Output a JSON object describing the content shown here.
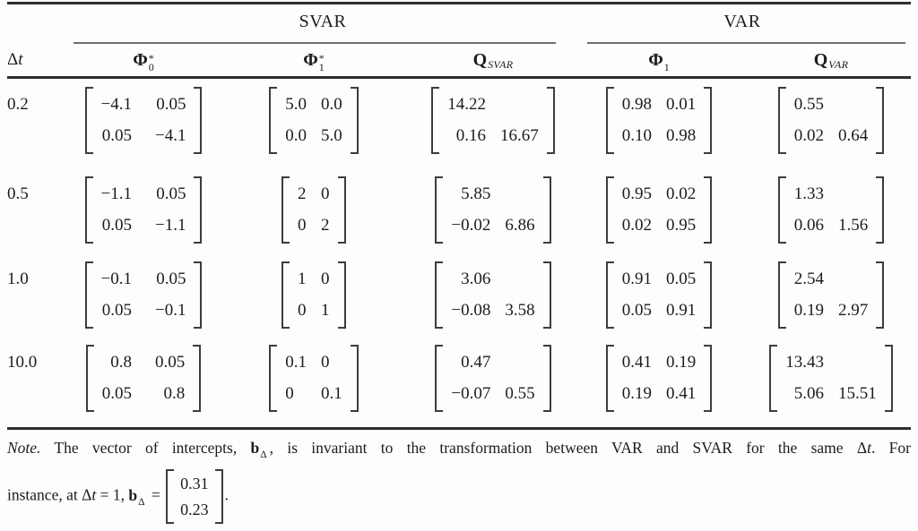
{
  "colors": {
    "ink": "#1c1c1c",
    "rule": "#2e2e2e"
  },
  "table": {
    "dt_header": {
      "delta": "Δ",
      "t": "t"
    },
    "groups": [
      {
        "label": "SVAR"
      },
      {
        "label": "VAR"
      }
    ],
    "col_headers": [
      {
        "base": "Φ",
        "sub": "0",
        "sup": "*"
      },
      {
        "base": "Φ",
        "sub": "1",
        "sup": "*"
      },
      {
        "base": "Q",
        "sub": "SVAR",
        "sup": ""
      },
      {
        "base": "Φ",
        "sub": "1",
        "sup": ""
      },
      {
        "base": "Q",
        "sub": "VAR",
        "sup": ""
      }
    ],
    "rows": [
      {
        "dt": "0.2",
        "phi0_star": [
          [
            "−4.1",
            "0.05"
          ],
          [
            "0.05",
            "−4.1"
          ]
        ],
        "phi1_star": [
          [
            "5.0",
            "0.0"
          ],
          [
            "0.0",
            "5.0"
          ]
        ],
        "q_svar": [
          [
            "14.22",
            ""
          ],
          [
            "0.16",
            "16.67"
          ]
        ],
        "phi1": [
          [
            "0.98",
            "0.01"
          ],
          [
            "0.10",
            "0.98"
          ]
        ],
        "q_var": [
          [
            "0.55",
            ""
          ],
          [
            "0.02",
            "0.64"
          ]
        ]
      },
      {
        "dt": "0.5",
        "phi0_star": [
          [
            "−1.1",
            "0.05"
          ],
          [
            "0.05",
            "−1.1"
          ]
        ],
        "phi1_star": [
          [
            "2",
            "0"
          ],
          [
            "0",
            "2"
          ]
        ],
        "q_svar": [
          [
            "5.85",
            ""
          ],
          [
            "−0.02",
            "6.86"
          ]
        ],
        "phi1": [
          [
            "0.95",
            "0.02"
          ],
          [
            "0.02",
            "0.95"
          ]
        ],
        "q_var": [
          [
            "1.33",
            ""
          ],
          [
            "0.06",
            "1.56"
          ]
        ]
      },
      {
        "dt": "1.0",
        "phi0_star": [
          [
            "−0.1",
            "0.05"
          ],
          [
            "0.05",
            "−0.1"
          ]
        ],
        "phi1_star": [
          [
            "1",
            "0"
          ],
          [
            "0",
            "1"
          ]
        ],
        "q_svar": [
          [
            "3.06",
            ""
          ],
          [
            "−0.08",
            "3.58"
          ]
        ],
        "phi1": [
          [
            "0.91",
            "0.05"
          ],
          [
            "0.05",
            "0.91"
          ]
        ],
        "q_var": [
          [
            "2.54",
            ""
          ],
          [
            "0.19",
            "2.97"
          ]
        ]
      },
      {
        "dt": "10.0",
        "phi0_star": [
          [
            "0.8",
            "0.05"
          ],
          [
            "0.05",
            "0.8"
          ]
        ],
        "phi1_star": [
          [
            "0.1",
            "0"
          ],
          [
            "0",
            "0.1"
          ]
        ],
        "q_svar": [
          [
            "0.47",
            ""
          ],
          [
            "−0.07",
            "0.55"
          ]
        ],
        "phi1": [
          [
            "0.41",
            "0.19"
          ],
          [
            "0.19",
            "0.41"
          ]
        ],
        "q_var": [
          [
            "13.43",
            ""
          ],
          [
            "5.06",
            "15.51"
          ]
        ]
      }
    ]
  },
  "note": {
    "label": "Note.",
    "seg1": "The vector of intercepts,",
    "b1": "b",
    "b1_sub": "Δ",
    "seg2": ", is invariant to the transformation between VAR and SVAR for the same",
    "dt1_delta": "Δ",
    "dt1_t": "t",
    "seg3": ". For",
    "seg4": "instance, at",
    "dt2_delta": "Δ",
    "dt2_t": "t",
    "seg5": "= 1,",
    "b2": "b",
    "b2_sub": "Δ",
    "equals": "=",
    "vector": [
      "0.31",
      "0.23"
    ],
    "period": "."
  }
}
